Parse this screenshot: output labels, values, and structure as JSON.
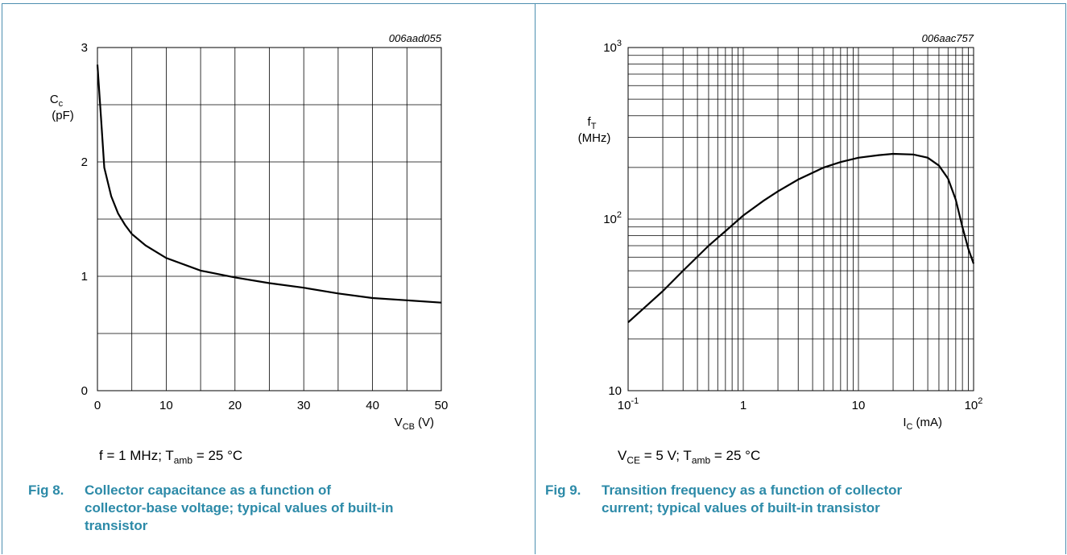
{
  "figures": [
    {
      "code": "006aad055",
      "y_label_line1": "C",
      "y_label_sub": "c",
      "y_label_line2": "(pF)",
      "x_label_main": "V",
      "x_label_sub": "CB",
      "x_label_unit": "(V)",
      "y_ticks": [
        "0",
        "1",
        "2",
        "3"
      ],
      "x_ticks": [
        "0",
        "10",
        "20",
        "30",
        "40",
        "50"
      ],
      "condition": {
        "pre": "f = 1 MHz; T",
        "sub": "amb",
        "post": " = 25 °C"
      },
      "fig_number": "Fig 8.",
      "caption_lines": [
        "Collector capacitance as a function of",
        "collector-base voltage; typical values of built-in",
        "transistor"
      ]
    },
    {
      "code": "006aac757",
      "y_label_line1": "f",
      "y_label_sub": "T",
      "y_label_line2": "(MHz)",
      "x_label_main": "I",
      "x_label_sub": "C",
      "x_label_unit": "(mA)",
      "y_ticks": [
        {
          "base": "10",
          "exp": ""
        },
        {
          "base": "10",
          "exp": "2"
        },
        {
          "base": "10",
          "exp": "3"
        }
      ],
      "x_ticks": [
        {
          "base": "10",
          "exp": "-1"
        },
        {
          "base": "1",
          "exp": ""
        },
        {
          "base": "10",
          "exp": ""
        },
        {
          "base": "10",
          "exp": "2"
        }
      ],
      "condition": {
        "pre1": "V",
        "sub1": "CE",
        "mid": " = 5 V; T",
        "sub2": "amb",
        "post": " = 25 °C"
      },
      "fig_number": "Fig 9.",
      "caption_lines": [
        "Transition frequency as a function of collector",
        "current; typical values of built-in transistor"
      ]
    }
  ],
  "chart_data": [
    {
      "type": "line",
      "xlim": [
        0,
        50
      ],
      "ylim": [
        0,
        3
      ],
      "grid": true,
      "series": [
        {
          "x": [
            0,
            0.5,
            1,
            2,
            3,
            4,
            5,
            7,
            10,
            15,
            20,
            25,
            30,
            35,
            40,
            45,
            50
          ],
          "y": [
            2.85,
            2.4,
            1.95,
            1.7,
            1.55,
            1.45,
            1.37,
            1.27,
            1.16,
            1.05,
            0.99,
            0.94,
            0.9,
            0.85,
            0.81,
            0.79,
            0.77
          ]
        }
      ]
    },
    {
      "type": "line",
      "x_scale": "log",
      "y_scale": "log",
      "xlim": [
        0.1,
        100
      ],
      "ylim": [
        10,
        1000
      ],
      "grid": true,
      "series": [
        {
          "x": [
            0.1,
            0.2,
            0.3,
            0.5,
            0.7,
            1,
            1.5,
            2,
            3,
            5,
            7,
            10,
            15,
            20,
            30,
            40,
            50,
            60,
            70,
            80,
            90,
            100
          ],
          "y": [
            25,
            38,
            50,
            70,
            85,
            105,
            128,
            145,
            170,
            200,
            215,
            228,
            236,
            240,
            238,
            228,
            205,
            172,
            130,
            90,
            67,
            55
          ]
        }
      ]
    }
  ]
}
